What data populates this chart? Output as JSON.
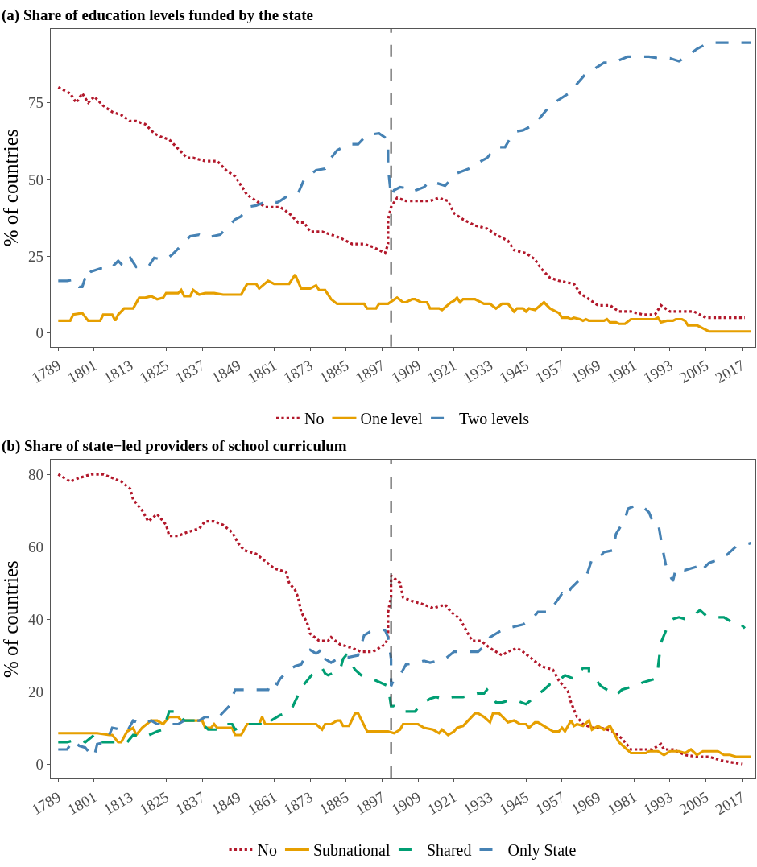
{
  "chart_data": [
    {
      "type": "line",
      "title": "(a) Share of education levels funded by the state",
      "ylabel": "% of countries",
      "xlim": [
        1786.5,
        2021.5
      ],
      "xticks": [
        1789,
        1801,
        1813,
        1825,
        1837,
        1849,
        1861,
        1873,
        1885,
        1897,
        1909,
        1921,
        1933,
        1945,
        1957,
        1969,
        1981,
        1993,
        2005,
        2017
      ],
      "ylim": [
        -4.5,
        99
      ],
      "yticks": [
        0,
        25,
        50,
        75
      ],
      "legend": "bottom",
      "ref_lines": [
        {
          "axis": "x",
          "value": 1900,
          "color": "#444444",
          "line_style": "dashed"
        }
      ],
      "series": [
        {
          "name": "No",
          "color": "#b2182b",
          "line_style": "dotted",
          "x": [
            1789,
            1793,
            1795,
            1797,
            1799,
            1801,
            1804,
            1807,
            1810,
            1813,
            1815,
            1818,
            1821,
            1823,
            1826,
            1829,
            1832,
            1834,
            1838,
            1842,
            1845,
            1848,
            1850,
            1852,
            1855,
            1858,
            1861,
            1863,
            1866,
            1869,
            1871,
            1873,
            1877,
            1880,
            1883,
            1887,
            1891,
            1894,
            1898,
            1899,
            1899,
            1900,
            1902,
            1905,
            1909,
            1913,
            1916,
            1919,
            1921,
            1924,
            1928,
            1932,
            1935,
            1939,
            1941,
            1945,
            1948,
            1950,
            1953,
            1956,
            1961,
            1963,
            1966,
            1969,
            1973,
            1976,
            1980,
            1984,
            1988,
            1990,
            1993,
            1997,
            2001,
            2005,
            2009,
            2013,
            2018
          ],
          "values": [
            80,
            78,
            75,
            78,
            75,
            77,
            74,
            72,
            71,
            69,
            69,
            68,
            65,
            64,
            63,
            60,
            57,
            57,
            56,
            56,
            53,
            51,
            48,
            45,
            43,
            41,
            41,
            41,
            39,
            36,
            36,
            33,
            33,
            32,
            31,
            29,
            29,
            28,
            26,
            29,
            37,
            41,
            44,
            43,
            43,
            43,
            44,
            43,
            39,
            37,
            35,
            34,
            32,
            30,
            27,
            26,
            24,
            21,
            18,
            17,
            16,
            13,
            11,
            9,
            9,
            7,
            7,
            6,
            6,
            9,
            7,
            7,
            7,
            5,
            5,
            5,
            5
          ]
        },
        {
          "name": "One level",
          "color": "#e69f00",
          "line_style": "solid",
          "x": [
            1789,
            1793,
            1794,
            1797,
            1799,
            1803,
            1804,
            1807,
            1808,
            1809,
            1811,
            1814,
            1816,
            1818,
            1820,
            1822,
            1824,
            1825,
            1829,
            1830,
            1831,
            1833,
            1834,
            1836,
            1838,
            1841,
            1844,
            1850,
            1852,
            1855,
            1856,
            1859,
            1861,
            1866,
            1868,
            1870,
            1873,
            1875,
            1876,
            1878,
            1880,
            1882,
            1891,
            1892,
            1895,
            1896,
            1899,
            1902,
            1904,
            1905,
            1907,
            1908,
            1910,
            1912,
            1913,
            1916,
            1917,
            1920,
            1921,
            1922,
            1923,
            1924,
            1928,
            1929,
            1931,
            1933,
            1935,
            1937,
            1939,
            1941,
            1942,
            1944,
            1945,
            1946,
            1948,
            1951,
            1953,
            1956,
            1957,
            1959,
            1960,
            1961,
            1963,
            1964,
            1965,
            1966,
            1971,
            1972,
            1973,
            1975,
            1976,
            1978,
            1980,
            1988,
            1989,
            1990,
            1992,
            1994,
            1995,
            1997,
            1998,
            1999,
            2002,
            2003,
            2004,
            2006,
            2020
          ],
          "values": [
            4,
            4,
            6,
            6.5,
            4,
            4,
            6,
            6,
            4,
            6,
            8,
            8,
            11.5,
            11.5,
            12,
            11,
            11.5,
            13,
            13,
            14,
            12,
            12,
            14,
            12.5,
            13,
            13,
            12.5,
            12.5,
            16,
            16,
            14.5,
            17,
            16,
            16,
            19,
            14.5,
            14.5,
            15.5,
            14,
            14,
            11,
            9.5,
            9.5,
            8,
            8,
            9.5,
            9.5,
            11.5,
            10,
            10,
            11,
            11,
            10,
            10,
            8,
            8,
            7.5,
            10,
            10.5,
            11.5,
            10,
            11,
            11,
            10.5,
            9.5,
            9.5,
            8,
            9.5,
            9.5,
            7,
            8,
            8,
            7,
            8,
            7.5,
            10,
            8,
            6.5,
            5,
            5,
            4.5,
            5,
            4.5,
            4,
            4.5,
            4,
            4,
            4.5,
            3.5,
            3.5,
            3,
            3,
            4.5,
            4.5,
            5,
            3.5,
            4,
            4,
            4.5,
            4.5,
            4,
            2.5,
            2.5,
            2,
            1.5,
            0.5,
            0.5
          ]
        },
        {
          "name": "Two levels",
          "color": "#4682b4",
          "line_style": "dashed",
          "x": [
            1789,
            1792,
            1795,
            1796,
            1797,
            1799,
            1800,
            1803,
            1806,
            1809,
            1811,
            1813,
            1815,
            1819,
            1821,
            1823,
            1825,
            1827,
            1830,
            1833,
            1836,
            1838,
            1843,
            1845,
            1848,
            1850,
            1852,
            1855,
            1859,
            1862,
            1863,
            1866,
            1869,
            1871,
            1875,
            1878,
            1880,
            1882,
            1886,
            1889,
            1892,
            1896,
            1899,
            1899,
            1900,
            1901,
            1903,
            1906,
            1907,
            1911,
            1913,
            1918,
            1920,
            1922,
            1926,
            1930,
            1932,
            1935,
            1938,
            1941,
            1944,
            1948,
            1950,
            1953,
            1956,
            1960,
            1961,
            1965,
            1967,
            1971,
            1974,
            1979,
            1982,
            1986,
            1989,
            1993,
            1996,
            2000,
            2002,
            2006,
            2020
          ],
          "values": [
            17,
            17,
            17.5,
            15,
            15,
            21,
            20,
            21,
            20.5,
            23.5,
            21.5,
            24.5,
            21.5,
            21.5,
            24.5,
            24,
            24,
            25.5,
            28.5,
            31.5,
            32,
            31,
            32,
            34,
            37,
            38,
            41,
            41.5,
            43,
            42.5,
            43,
            45,
            45.5,
            50,
            53,
            53.5,
            57,
            59.5,
            61.5,
            61.5,
            64.5,
            65,
            63,
            54,
            44.5,
            46.5,
            47.5,
            47,
            46,
            47.5,
            49.5,
            48,
            50,
            52,
            53.5,
            56,
            57,
            60.5,
            60.5,
            65.5,
            66,
            68,
            70.5,
            74,
            76,
            78.5,
            80,
            84.5,
            85.5,
            88,
            88,
            90,
            90,
            90,
            89.5,
            89.5,
            88.5,
            91,
            92.5,
            94.5,
            94.5
          ]
        }
      ]
    },
    {
      "type": "line",
      "title": "(b) Share of state−led providers of school curriculum",
      "ylabel": "% of countries",
      "xlim": [
        1786.5,
        2021.5
      ],
      "xticks": [
        1789,
        1801,
        1813,
        1825,
        1837,
        1849,
        1861,
        1873,
        1885,
        1897,
        1909,
        1921,
        1933,
        1945,
        1957,
        1969,
        1981,
        1993,
        2005,
        2017
      ],
      "ylim": [
        -4,
        84
      ],
      "yticks": [
        0,
        20,
        40,
        60,
        80
      ],
      "legend": "bottom",
      "ref_lines": [
        {
          "axis": "x",
          "value": 1900,
          "color": "#444444",
          "line_style": "dashed"
        }
      ],
      "series": [
        {
          "name": "No",
          "color": "#b2182b",
          "line_style": "dotted",
          "x": [
            1789,
            1793,
            1796,
            1800,
            1804,
            1807,
            1810,
            1813,
            1814,
            1817,
            1819,
            1822,
            1825,
            1826,
            1829,
            1832,
            1836,
            1838,
            1841,
            1844,
            1847,
            1849,
            1851,
            1855,
            1858,
            1861,
            1865,
            1866,
            1868,
            1869,
            1870,
            1872,
            1873,
            1876,
            1879,
            1880,
            1883,
            1887,
            1890,
            1894,
            1898,
            1899,
            1899,
            1900,
            1900,
            1903,
            1904,
            1907,
            1911,
            1914,
            1918,
            1920,
            1923,
            1925,
            1927,
            1930,
            1933,
            1937,
            1939,
            1942,
            1944,
            1947,
            1950,
            1954,
            1956,
            1959,
            1960,
            1962,
            1964,
            1967,
            1970,
            1974,
            1977,
            1980,
            1984,
            1987,
            1990,
            1991,
            1994,
            1998,
            2002,
            2006,
            2010,
            2013,
            2017
          ],
          "values": [
            80,
            78,
            79,
            80,
            80,
            79,
            78,
            76,
            73,
            70,
            67,
            69,
            66,
            63,
            63,
            64,
            65,
            67,
            67,
            66,
            64,
            61,
            59,
            58,
            56,
            54,
            53,
            50,
            48,
            46,
            42,
            39,
            36,
            34,
            34,
            35,
            33,
            32,
            31,
            31,
            33,
            35,
            42,
            46,
            52,
            50,
            46,
            45,
            44,
            43,
            44,
            42,
            40,
            37,
            34,
            34,
            32,
            30,
            31,
            32,
            31,
            29,
            27,
            26,
            23,
            20,
            17,
            13,
            11,
            10,
            10,
            9,
            7,
            4,
            4,
            4,
            5.5,
            4,
            4,
            2.5,
            2,
            2,
            1,
            0.5,
            0
          ]
        },
        {
          "name": "Subnational",
          "color": "#e69f00",
          "line_style": "solid",
          "x": [
            1789,
            1795,
            1797,
            1799,
            1802,
            1806,
            1807,
            1809,
            1810,
            1812,
            1814,
            1815,
            1817,
            1820,
            1822,
            1824,
            1826,
            1829,
            1830,
            1837,
            1838,
            1840,
            1841,
            1842,
            1847,
            1848,
            1850,
            1852,
            1856,
            1857,
            1858,
            1866,
            1875,
            1877,
            1878,
            1880,
            1882,
            1883,
            1884,
            1886,
            1888,
            1889,
            1892,
            1899,
            1901,
            1903,
            1904,
            1909,
            1911,
            1914,
            1916,
            1917,
            1919,
            1921,
            1922,
            1924,
            1928,
            1929,
            1931,
            1933,
            1934,
            1936,
            1939,
            1941,
            1943,
            1945,
            1946,
            1948,
            1949,
            1951,
            1952,
            1954,
            1956,
            1957,
            1958,
            1960,
            1961,
            1962,
            1964,
            1966,
            1967,
            1969,
            1970,
            1971,
            1973,
            1974,
            1976,
            1978,
            1980,
            1985,
            1986,
            1989,
            1991,
            1993,
            1996,
            1998,
            2000,
            2002,
            2004,
            2009,
            2011,
            2013,
            2015,
            2020
          ],
          "values": [
            8.5,
            8.5,
            8.5,
            8.5,
            8.5,
            8,
            8,
            6,
            6,
            9,
            10,
            8,
            10,
            12,
            12,
            11,
            13,
            13,
            12,
            12,
            10,
            10,
            11,
            10,
            10,
            8,
            8,
            11,
            11,
            13,
            11,
            11,
            11,
            9.5,
            11,
            11,
            12,
            12,
            10.5,
            10.5,
            14,
            14,
            9,
            9,
            8.5,
            9.5,
            11,
            11,
            10,
            9.5,
            8.5,
            9.5,
            8,
            9,
            10,
            10.5,
            14,
            14,
            13,
            11.5,
            14,
            14,
            11.5,
            12,
            11,
            11,
            10,
            11.5,
            11.5,
            10.5,
            10,
            9,
            9,
            10,
            9,
            12,
            10.5,
            11,
            10.5,
            12,
            9.5,
            10.5,
            10,
            9.5,
            10.5,
            9,
            6,
            4.5,
            3,
            3,
            3.5,
            3.5,
            2.5,
            3.5,
            3.5,
            3,
            4,
            2.5,
            3.5,
            3.5,
            2.5,
            2.5,
            2,
            2
          ]
        },
        {
          "name": "Shared",
          "color": "#009e73",
          "line_style": "dashed",
          "x": [
            1789,
            1792,
            1794,
            1797,
            1798,
            1801,
            1802,
            1806,
            1807,
            1812,
            1814,
            1817,
            1818,
            1822,
            1824,
            1826,
            1829,
            1831,
            1836,
            1839,
            1842,
            1844,
            1847,
            1848,
            1852,
            1856,
            1860,
            1860,
            1863,
            1865,
            1867,
            1869,
            1870,
            1872,
            1874,
            1877,
            1878,
            1879,
            1883,
            1884,
            1885,
            1888,
            1890,
            1892,
            1895,
            1899,
            1900,
            1901,
            1903,
            1908,
            1910,
            1913,
            1915,
            1917,
            1921,
            1924,
            1929,
            1931,
            1932,
            1935,
            1937,
            1939,
            1942,
            1945,
            1948,
            1951,
            1953,
            1955,
            1958,
            1961,
            1964,
            1966,
            1966,
            1968,
            1970,
            1975,
            1977,
            1981,
            1984,
            1988,
            1989,
            1990,
            1992,
            1994,
            1996,
            1998,
            2001,
            2003,
            2005,
            2008,
            2011,
            2014,
            2016,
            2018
          ],
          "values": [
            6,
            6,
            6.5,
            6.5,
            6,
            8,
            6,
            6,
            6,
            6,
            8,
            7.5,
            7.5,
            9,
            9.5,
            14.5,
            14.5,
            12,
            12,
            9.5,
            9.5,
            11,
            11,
            9.5,
            11,
            11,
            11,
            12,
            13.5,
            14,
            15.5,
            19,
            21,
            23,
            25,
            26.5,
            25,
            24.5,
            26,
            29,
            30,
            26,
            24.5,
            24,
            23,
            21.5,
            16,
            16,
            14.5,
            14.5,
            16.5,
            18,
            18.5,
            18,
            18.5,
            18.5,
            19.5,
            19.5,
            20.5,
            17,
            17,
            17.5,
            17.5,
            16.5,
            18.5,
            20.5,
            22,
            22.5,
            24.5,
            23.5,
            26.5,
            26.5,
            25,
            23.5,
            21.5,
            19,
            20.5,
            21.5,
            22.5,
            23.5,
            26.5,
            33.5,
            37.5,
            40,
            40.5,
            40,
            41,
            42.5,
            41,
            40.5,
            40.5,
            39,
            39,
            37.5
          ]
        },
        {
          "name": "Only State",
          "color": "#4682b4",
          "line_style": "dashed",
          "x": [
            1789,
            1792,
            1794,
            1796,
            1798,
            1799,
            1801,
            1802,
            1805,
            1807,
            1810,
            1812,
            1814,
            1817,
            1820,
            1822,
            1826,
            1829,
            1831,
            1836,
            1838,
            1840,
            1842,
            1846,
            1848,
            1852,
            1859,
            1860,
            1862,
            1863,
            1866,
            1868,
            1870,
            1872,
            1873,
            1875,
            1876,
            1877,
            1878,
            1880,
            1883,
            1886,
            1889,
            1891,
            1894,
            1898,
            1899,
            1900,
            1900,
            1901,
            1903,
            1905,
            1909,
            1911,
            1913,
            1918,
            1921,
            1929,
            1931,
            1933,
            1936,
            1939,
            1944,
            1947,
            1949,
            1953,
            1954,
            1957,
            1958,
            1960,
            1963,
            1965,
            1967,
            1969,
            1971,
            1974,
            1975,
            1978,
            1979,
            1982,
            1984,
            1986,
            1987,
            1989,
            1990,
            1991,
            1992,
            1994,
            1995,
            1998,
            2002,
            2003,
            2006,
            2011,
            2013,
            2015,
            2018,
            2020
          ],
          "values": [
            4,
            4,
            6.5,
            5,
            4.5,
            3.5,
            2,
            5.5,
            6,
            10,
            9.5,
            9,
            12,
            11,
            12,
            11,
            11,
            11,
            12,
            12,
            13,
            13,
            12.5,
            16,
            20.5,
            20.5,
            20.5,
            23,
            22,
            23.5,
            26,
            27,
            27.5,
            30.5,
            31.5,
            30.5,
            31,
            32,
            29,
            28,
            29.5,
            29.5,
            30,
            35.5,
            37,
            37,
            35,
            29,
            21.5,
            23.5,
            24.5,
            27.5,
            28,
            28.5,
            28,
            29,
            31,
            31,
            32.5,
            35,
            36.5,
            37.5,
            38.5,
            40,
            42,
            42,
            43.5,
            47,
            46,
            48.5,
            51,
            51.5,
            56.5,
            56.5,
            58.5,
            59,
            63.5,
            67.5,
            70.5,
            71.5,
            71,
            69.5,
            67.5,
            67,
            62,
            57.5,
            53.5,
            50.5,
            54,
            53.5,
            54.5,
            53,
            55.5,
            57,
            58.5,
            60,
            60.5,
            61
          ]
        }
      ]
    }
  ]
}
